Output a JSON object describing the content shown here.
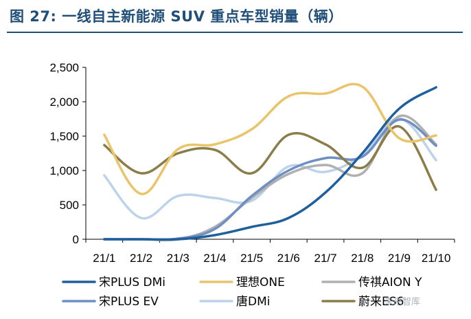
{
  "title": "图 27:  一线自主新能源 SUV 重点车型销量（辆）",
  "watermark": "未来智库",
  "chart_data": {
    "type": "line",
    "categories": [
      "21/1",
      "21/2",
      "21/3",
      "21/4",
      "21/5",
      "21/6",
      "21/7",
      "21/8",
      "21/9",
      "21/10"
    ],
    "y_ticks": [
      "0",
      "500",
      "1,000",
      "1,500",
      "2,000",
      "2,500"
    ],
    "ylim": [
      0,
      2500
    ],
    "series": [
      {
        "name": "宋PLUS DMi",
        "color": "#1f5f9e",
        "values": [
          0,
          0,
          0,
          60,
          180,
          310,
          680,
          1250,
          1900,
          2210
        ]
      },
      {
        "name": "理想ONE",
        "color": "#e9c46a",
        "values": [
          1520,
          660,
          1310,
          1380,
          1600,
          2080,
          2120,
          2220,
          1470,
          1510
        ]
      },
      {
        "name": "传祺AION Y",
        "color": "#b0b0b0",
        "values": [
          0,
          0,
          0,
          180,
          600,
          950,
          1080,
          960,
          1790,
          1380
        ]
      },
      {
        "name": "宋PLUS EV",
        "color": "#6f8fc4",
        "values": [
          0,
          0,
          10,
          150,
          630,
          1000,
          1180,
          1200,
          1740,
          1360
        ]
      },
      {
        "name": "唐DMi",
        "color": "#bcd3ea",
        "values": [
          930,
          310,
          630,
          600,
          560,
          1060,
          980,
          1230,
          1760,
          1150
        ]
      },
      {
        "name": "蔚来ES6",
        "color": "#8a7d4a",
        "values": [
          1370,
          960,
          1250,
          1300,
          960,
          1520,
          1380,
          1040,
          1640,
          720
        ]
      }
    ]
  }
}
